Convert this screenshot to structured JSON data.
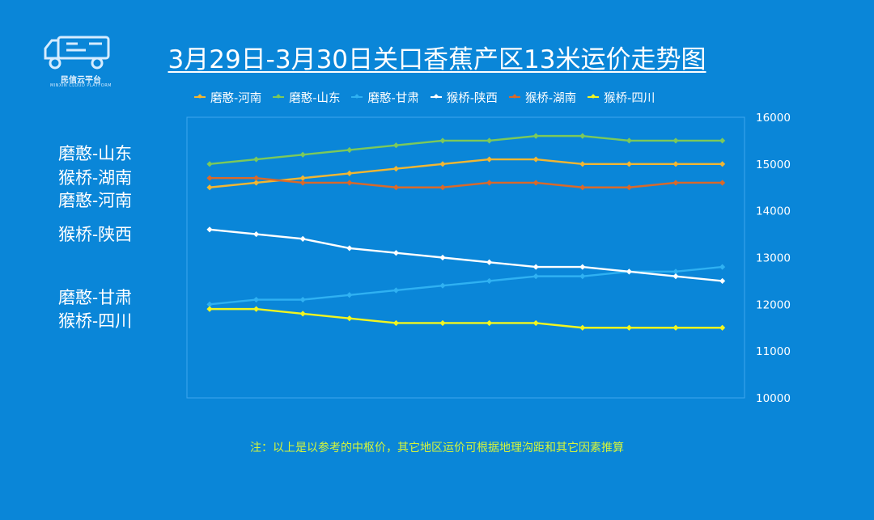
{
  "logo": {
    "text": "民信云平台",
    "subtext": "MINXIN CLOUD PLATFORM"
  },
  "title": "3月29日-3月30日关口香蕉产区13米运价走势图",
  "side_labels": [
    "磨憨-山东",
    "猴桥-湖南",
    "磨憨-河南",
    "猴桥-陕西",
    "磨憨-甘肃",
    "猴桥-四川"
  ],
  "note": "注：以上是以参考的中枢价，其它地区运价可根据地理沟距和其它因素推算",
  "colors": {
    "background": "#0a86d8",
    "plot_border": "#3fa6ee"
  },
  "chart_data": {
    "type": "line",
    "x": [
      1,
      2,
      3,
      4,
      5,
      6,
      7,
      8,
      9,
      10,
      11,
      12
    ],
    "ylim": [
      10000,
      16000
    ],
    "yticks": [
      10000,
      11000,
      12000,
      13000,
      14000,
      15000,
      16000
    ],
    "y_axis_side": "right",
    "grid": false,
    "legend_position": "top",
    "series": [
      {
        "name": "磨憨-河南",
        "color": "#f2b632",
        "values": [
          14500,
          14600,
          14700,
          14800,
          14900,
          15000,
          15100,
          15100,
          15000,
          15000,
          15000,
          15000
        ]
      },
      {
        "name": "磨憨-山东",
        "color": "#7cc95a",
        "values": [
          15000,
          15100,
          15200,
          15300,
          15400,
          15500,
          15500,
          15600,
          15600,
          15500,
          15500,
          15500
        ]
      },
      {
        "name": "磨憨-甘肃",
        "color": "#2fb1f2",
        "values": [
          12000,
          12100,
          12100,
          12200,
          12300,
          12400,
          12500,
          12600,
          12600,
          12700,
          12700,
          12800
        ]
      },
      {
        "name": "猴桥-陕西",
        "color": "#ffffff",
        "values": [
          13600,
          13500,
          13400,
          13200,
          13100,
          13000,
          12900,
          12800,
          12800,
          12700,
          12600,
          12500
        ]
      },
      {
        "name": "猴桥-湖南",
        "color": "#d9692a",
        "values": [
          14700,
          14700,
          14600,
          14600,
          14500,
          14500,
          14600,
          14600,
          14500,
          14500,
          14600,
          14600
        ]
      },
      {
        "name": "猴桥-四川",
        "color": "#f2f51f",
        "values": [
          11900,
          11900,
          11800,
          11700,
          11600,
          11600,
          11600,
          11600,
          11500,
          11500,
          11500,
          11500
        ]
      }
    ]
  }
}
